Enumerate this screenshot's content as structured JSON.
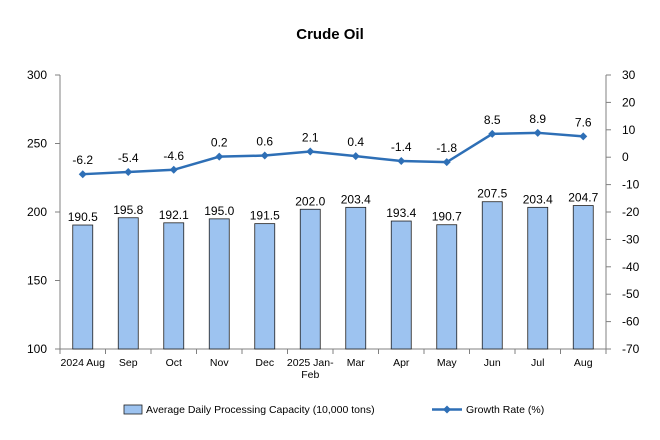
{
  "chart_data": {
    "type": "bar",
    "title": "Crude Oil",
    "categories": [
      [
        "2024 Aug"
      ],
      [
        "Sep"
      ],
      [
        "Oct"
      ],
      [
        "Nov"
      ],
      [
        "Dec"
      ],
      [
        "2025 Jan-",
        "Feb"
      ],
      [
        "Mar"
      ],
      [
        "Apr"
      ],
      [
        "May"
      ],
      [
        "Jun"
      ],
      [
        "Jul"
      ],
      [
        "Aug"
      ]
    ],
    "series": [
      {
        "name": "Average Daily Processing Capacity (10,000 tons)",
        "type": "bar",
        "axis": "left",
        "values": [
          190.5,
          195.8,
          192.1,
          195.0,
          191.5,
          202.0,
          203.4,
          193.4,
          190.7,
          207.5,
          203.4,
          204.7
        ],
        "labels": [
          "190.5",
          "195.8",
          "192.1",
          "195.0",
          "191.5",
          "202.0",
          "203.4",
          "193.4",
          "190.7",
          "207.5",
          "203.4",
          "204.7"
        ]
      },
      {
        "name": "Growth Rate (%)",
        "type": "line",
        "axis": "right",
        "values": [
          -6.2,
          -5.4,
          -4.6,
          0.2,
          0.6,
          2.1,
          0.4,
          -1.4,
          -1.8,
          8.5,
          8.9,
          7.6
        ],
        "labels": [
          "-6.2",
          "-5.4",
          "-4.6",
          "0.2",
          "0.6",
          "2.1",
          "0.4",
          "-1.4",
          "-1.8",
          "8.5",
          "8.9",
          "7.6"
        ]
      }
    ],
    "y_left": {
      "min": 100,
      "max": 300,
      "ticks": [
        "100",
        "150",
        "200",
        "250",
        "300"
      ]
    },
    "y_right": {
      "min": -70,
      "max": 30,
      "ticks": [
        "-70",
        "-60",
        "-50",
        "-40",
        "-30",
        "-20",
        "-10",
        "0",
        "10",
        "20",
        "30"
      ]
    },
    "grid": false,
    "legend": "bottom",
    "colors": {
      "bar_fill": "#9dc3f0",
      "bar_stroke": "#1f1f1f",
      "line": "#2e6fb6",
      "axis": "#808080"
    }
  }
}
